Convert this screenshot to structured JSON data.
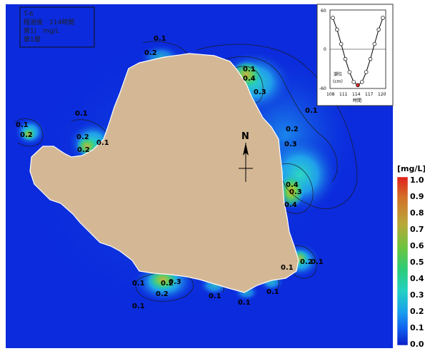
{
  "info_box": {
    "line1": "T-6",
    "line2": "経過後　114時間",
    "line3": "第1(　mg/L",
    "line4": "第1層"
  },
  "compass": {
    "north_label": "N"
  },
  "contour_labels": [
    {
      "text": "0.1"
    },
    {
      "text": "0.2"
    },
    {
      "text": "0.1"
    },
    {
      "text": "0.1"
    },
    {
      "text": "0.2"
    },
    {
      "text": "0.1"
    },
    {
      "text": "0.2"
    },
    {
      "text": "0.1"
    },
    {
      "text": "0.2"
    },
    {
      "text": "0.4"
    },
    {
      "text": "0.3"
    },
    {
      "text": "0.1"
    },
    {
      "text": "0.2"
    },
    {
      "text": "0.4"
    },
    {
      "text": "0.3"
    },
    {
      "text": "0.3"
    },
    {
      "text": "0.4"
    },
    {
      "text": "0.2"
    },
    {
      "text": "0.1"
    },
    {
      "text": "0.1"
    },
    {
      "text": "0.3"
    },
    {
      "text": "0.1"
    },
    {
      "text": "0.2"
    },
    {
      "text": "0.1"
    },
    {
      "text": "0.1"
    },
    {
      "text": "0.1"
    },
    {
      "text": "0.1"
    },
    {
      "text": "0.2"
    }
  ],
  "legend": {
    "unit": "[mg/L]",
    "ticks": [
      "1.0",
      "0.9",
      "0.8",
      "0.7",
      "0.6",
      "0.5",
      "0.4",
      "0.3",
      "0.2",
      "0.1",
      "0.0"
    ],
    "colors": [
      "#e0201a",
      "#d8501e",
      "#d47a2a",
      "#c6a236",
      "#9fb83d",
      "#5cc23e",
      "#2ccc6a",
      "#22d0b0",
      "#1db0e8",
      "#1270f0",
      "#0a1ec8"
    ]
  },
  "inset": {
    "y_ticks": [
      "60",
      "0",
      "-60"
    ],
    "x_ticks": [
      "108",
      "111",
      "114",
      "117",
      "120"
    ],
    "x_label": "時間",
    "y_label_1": "潮位",
    "y_label_2": "(cm)",
    "series": [
      {
        "t": 108,
        "v": 48
      },
      {
        "t": 109,
        "v": 30
      },
      {
        "t": 110,
        "v": 8
      },
      {
        "t": 111,
        "v": -15
      },
      {
        "t": 112,
        "v": -35
      },
      {
        "t": 113,
        "v": -50
      },
      {
        "t": 114,
        "v": -55
      },
      {
        "t": 115,
        "v": -50
      },
      {
        "t": 116,
        "v": -35
      },
      {
        "t": 117,
        "v": -15
      },
      {
        "t": 118,
        "v": 8
      },
      {
        "t": 119,
        "v": 30
      },
      {
        "t": 120,
        "v": 48
      }
    ],
    "current_time": 114,
    "colors": {
      "point": "#ffffff",
      "current": "#e02020",
      "line": "#000000"
    }
  },
  "colors": {
    "sea": "#0b2bdc",
    "land": "#d4b896",
    "halo_outer": "#1a80f0",
    "halo_mid": "#30c8e8",
    "halo_inner": "#3cd070",
    "hot": "#e0b030"
  }
}
